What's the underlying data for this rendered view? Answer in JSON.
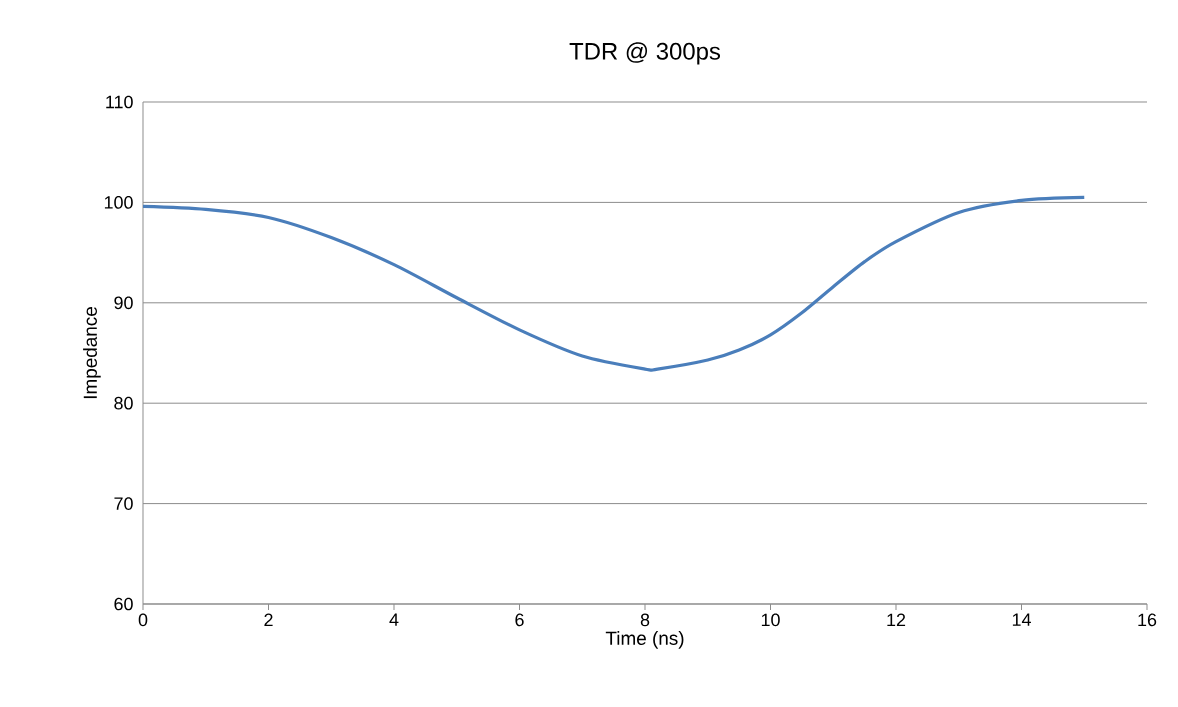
{
  "chart_data": {
    "type": "line",
    "title": "TDR @ 300ps",
    "xlabel": "Time (ns)",
    "ylabel": "Impedance",
    "x": [
      0,
      1,
      2,
      3,
      4,
      5,
      6,
      7,
      8,
      8.2,
      9,
      9.5,
      10,
      10.5,
      11,
      11.5,
      12,
      13,
      14,
      15
    ],
    "series": [
      {
        "color": "#4a7ebb",
        "values": [
          99.6,
          99.3,
          98.5,
          96.5,
          93.8,
          90.5,
          87.3,
          84.7,
          83.4,
          83.4,
          84.3,
          85.3,
          86.8,
          89.0,
          91.6,
          94.1,
          96.1,
          99.0,
          100.2,
          100.5
        ]
      }
    ],
    "xlim": [
      0,
      16
    ],
    "xticks": [
      0,
      2,
      4,
      6,
      8,
      10,
      12,
      14,
      16
    ],
    "ylim": [
      60,
      110
    ],
    "yticks": [
      60,
      70,
      80,
      90,
      100,
      110
    ],
    "grid": "y",
    "marker": "none",
    "line_style": "solid"
  }
}
